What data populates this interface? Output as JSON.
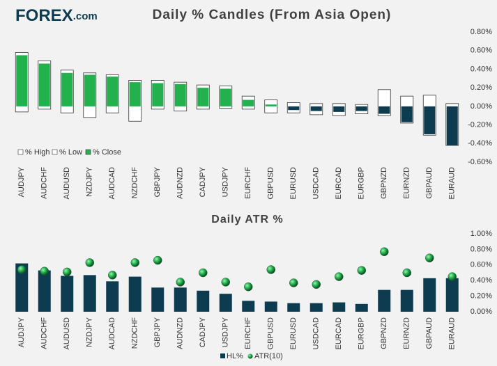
{
  "logo": {
    "brand": "FOREX",
    "suffix": ".com"
  },
  "chart_data": [
    {
      "type": "candle",
      "title": "Daily % Candles (From Asia Open)",
      "categories": [
        "AUDJPY",
        "AUDCHF",
        "AUDUSD",
        "NZDJPY",
        "AUDCAD",
        "NZDCHF",
        "GBPJPY",
        "AUDNZD",
        "CADJPY",
        "USDJPY",
        "EURCHF",
        "GBPUSD",
        "EURUSD",
        "USDCAD",
        "EURCAD",
        "EURGBP",
        "GBPNZD",
        "EURNZD",
        "GBPAUD",
        "EURAUD"
      ],
      "series": [
        {
          "name": "% High",
          "color": "#ffffff",
          "values": [
            0.58,
            0.49,
            0.39,
            0.36,
            0.34,
            0.28,
            0.28,
            0.26,
            0.23,
            0.22,
            0.11,
            0.07,
            0.04,
            0.03,
            0.03,
            0.02,
            0.18,
            0.11,
            0.12,
            0.03
          ]
        },
        {
          "name": "% Low",
          "color": "#ffffff",
          "values": [
            -0.06,
            -0.03,
            -0.07,
            -0.12,
            -0.07,
            -0.16,
            -0.03,
            -0.05,
            -0.03,
            -0.02,
            -0.03,
            -0.07,
            -0.07,
            -0.09,
            -0.1,
            -0.08,
            -0.1,
            -0.18,
            -0.31,
            -0.42
          ]
        },
        {
          "name": "% Close",
          "color": "#22b14c",
          "negative_color": "#0d3b4f",
          "values": [
            0.55,
            0.46,
            0.36,
            0.34,
            0.32,
            0.26,
            0.25,
            0.24,
            0.2,
            0.19,
            0.07,
            0.02,
            -0.04,
            -0.05,
            -0.06,
            -0.05,
            -0.08,
            -0.17,
            -0.3,
            -0.42
          ]
        }
      ],
      "ylim": [
        -0.6,
        0.8
      ],
      "yticks": [
        {
          "value": 0.8,
          "label": "0.80%"
        },
        {
          "value": 0.6,
          "label": "0.60%"
        },
        {
          "value": 0.4,
          "label": "0.40%"
        },
        {
          "value": 0.2,
          "label": "0.20%"
        },
        {
          "value": 0,
          "label": "0.00%"
        },
        {
          "value": -0.2,
          "label": "-0.20%"
        },
        {
          "value": -0.4,
          "label": "-0.40%"
        },
        {
          "value": -0.6,
          "label": "-0.60%"
        }
      ],
      "grid": false,
      "legend": "bottom-left"
    },
    {
      "type": "bar",
      "title": "Daily ATR %",
      "categories": [
        "AUDJPY",
        "AUDCHF",
        "AUDUSD",
        "NZDJPY",
        "AUDCAD",
        "NZDCHF",
        "GBPJPY",
        "AUDNZD",
        "CADJPY",
        "USDJPY",
        "EURCHF",
        "GBPUSD",
        "EURUSD",
        "USDCAD",
        "EURCAD",
        "EURGBP",
        "GBPNZD",
        "EURNZD",
        "GBPAUD",
        "EURAUD"
      ],
      "series": [
        {
          "name": "HL%",
          "color": "#0d3b4f",
          "type": "bar",
          "values": [
            0.62,
            0.53,
            0.46,
            0.47,
            0.39,
            0.45,
            0.31,
            0.31,
            0.27,
            0.23,
            0.14,
            0.13,
            0.11,
            0.11,
            0.12,
            0.1,
            0.28,
            0.28,
            0.43,
            0.43
          ]
        },
        {
          "name": "ATR(10)",
          "color": "#22b14c",
          "type": "scatter",
          "values": [
            0.54,
            0.52,
            0.51,
            0.63,
            0.47,
            0.63,
            0.66,
            0.38,
            0.5,
            0.38,
            0.32,
            0.54,
            0.37,
            0.35,
            0.45,
            0.53,
            0.77,
            0.5,
            0.69,
            0.45
          ]
        }
      ],
      "ylim": [
        0,
        1
      ],
      "yticks": [
        {
          "value": 0,
          "label": "0.00%"
        },
        {
          "value": 0.2,
          "label": "0.20%"
        },
        {
          "value": 0.4,
          "label": "0.40%"
        },
        {
          "value": 0.6,
          "label": "0.60%"
        },
        {
          "value": 0.8,
          "label": "0.80%"
        },
        {
          "value": 1,
          "label": "1.00%"
        }
      ],
      "grid": false,
      "legend": "bottom"
    }
  ]
}
